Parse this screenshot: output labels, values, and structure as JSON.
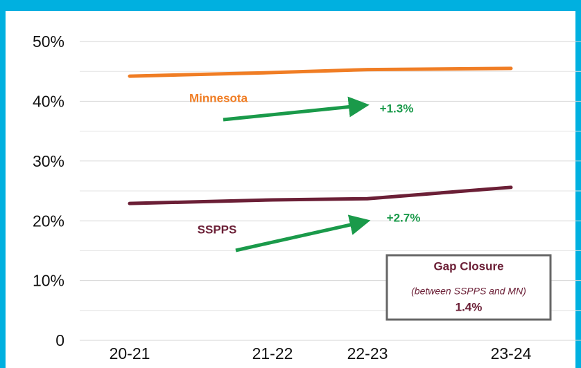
{
  "chart_data": {
    "type": "line",
    "categories": [
      "20-21",
      "21-22",
      "22-23",
      "23-24"
    ],
    "series": [
      {
        "name": "Minnesota",
        "color": "#f07d24",
        "values": [
          44.2,
          44.8,
          45.3,
          45.5
        ]
      },
      {
        "name": "SSPPS",
        "color": "#6b1f36",
        "values": [
          22.9,
          23.5,
          23.7,
          25.6
        ]
      }
    ],
    "ylim": [
      0,
      50
    ],
    "yticks": [
      0,
      {
        "value": 10,
        "label": "10%"
      },
      {
        "value": 20,
        "label": "20%"
      },
      {
        "value": 30,
        "label": "30%"
      },
      {
        "value": 40,
        "label": "40%"
      },
      {
        "value": 50,
        "label": "50%"
      }
    ],
    "minor_yticks": [
      5,
      15,
      25,
      35,
      45
    ],
    "grid": true,
    "annotations": {
      "minnesota_change": "+1.3%",
      "sspps_change": "+2.7%",
      "arrow_color": "#1a9a4a"
    },
    "gap_box": {
      "title": "Gap Closure",
      "subtitle": "(between SSPPS and MN)",
      "value": "1.4%"
    }
  }
}
